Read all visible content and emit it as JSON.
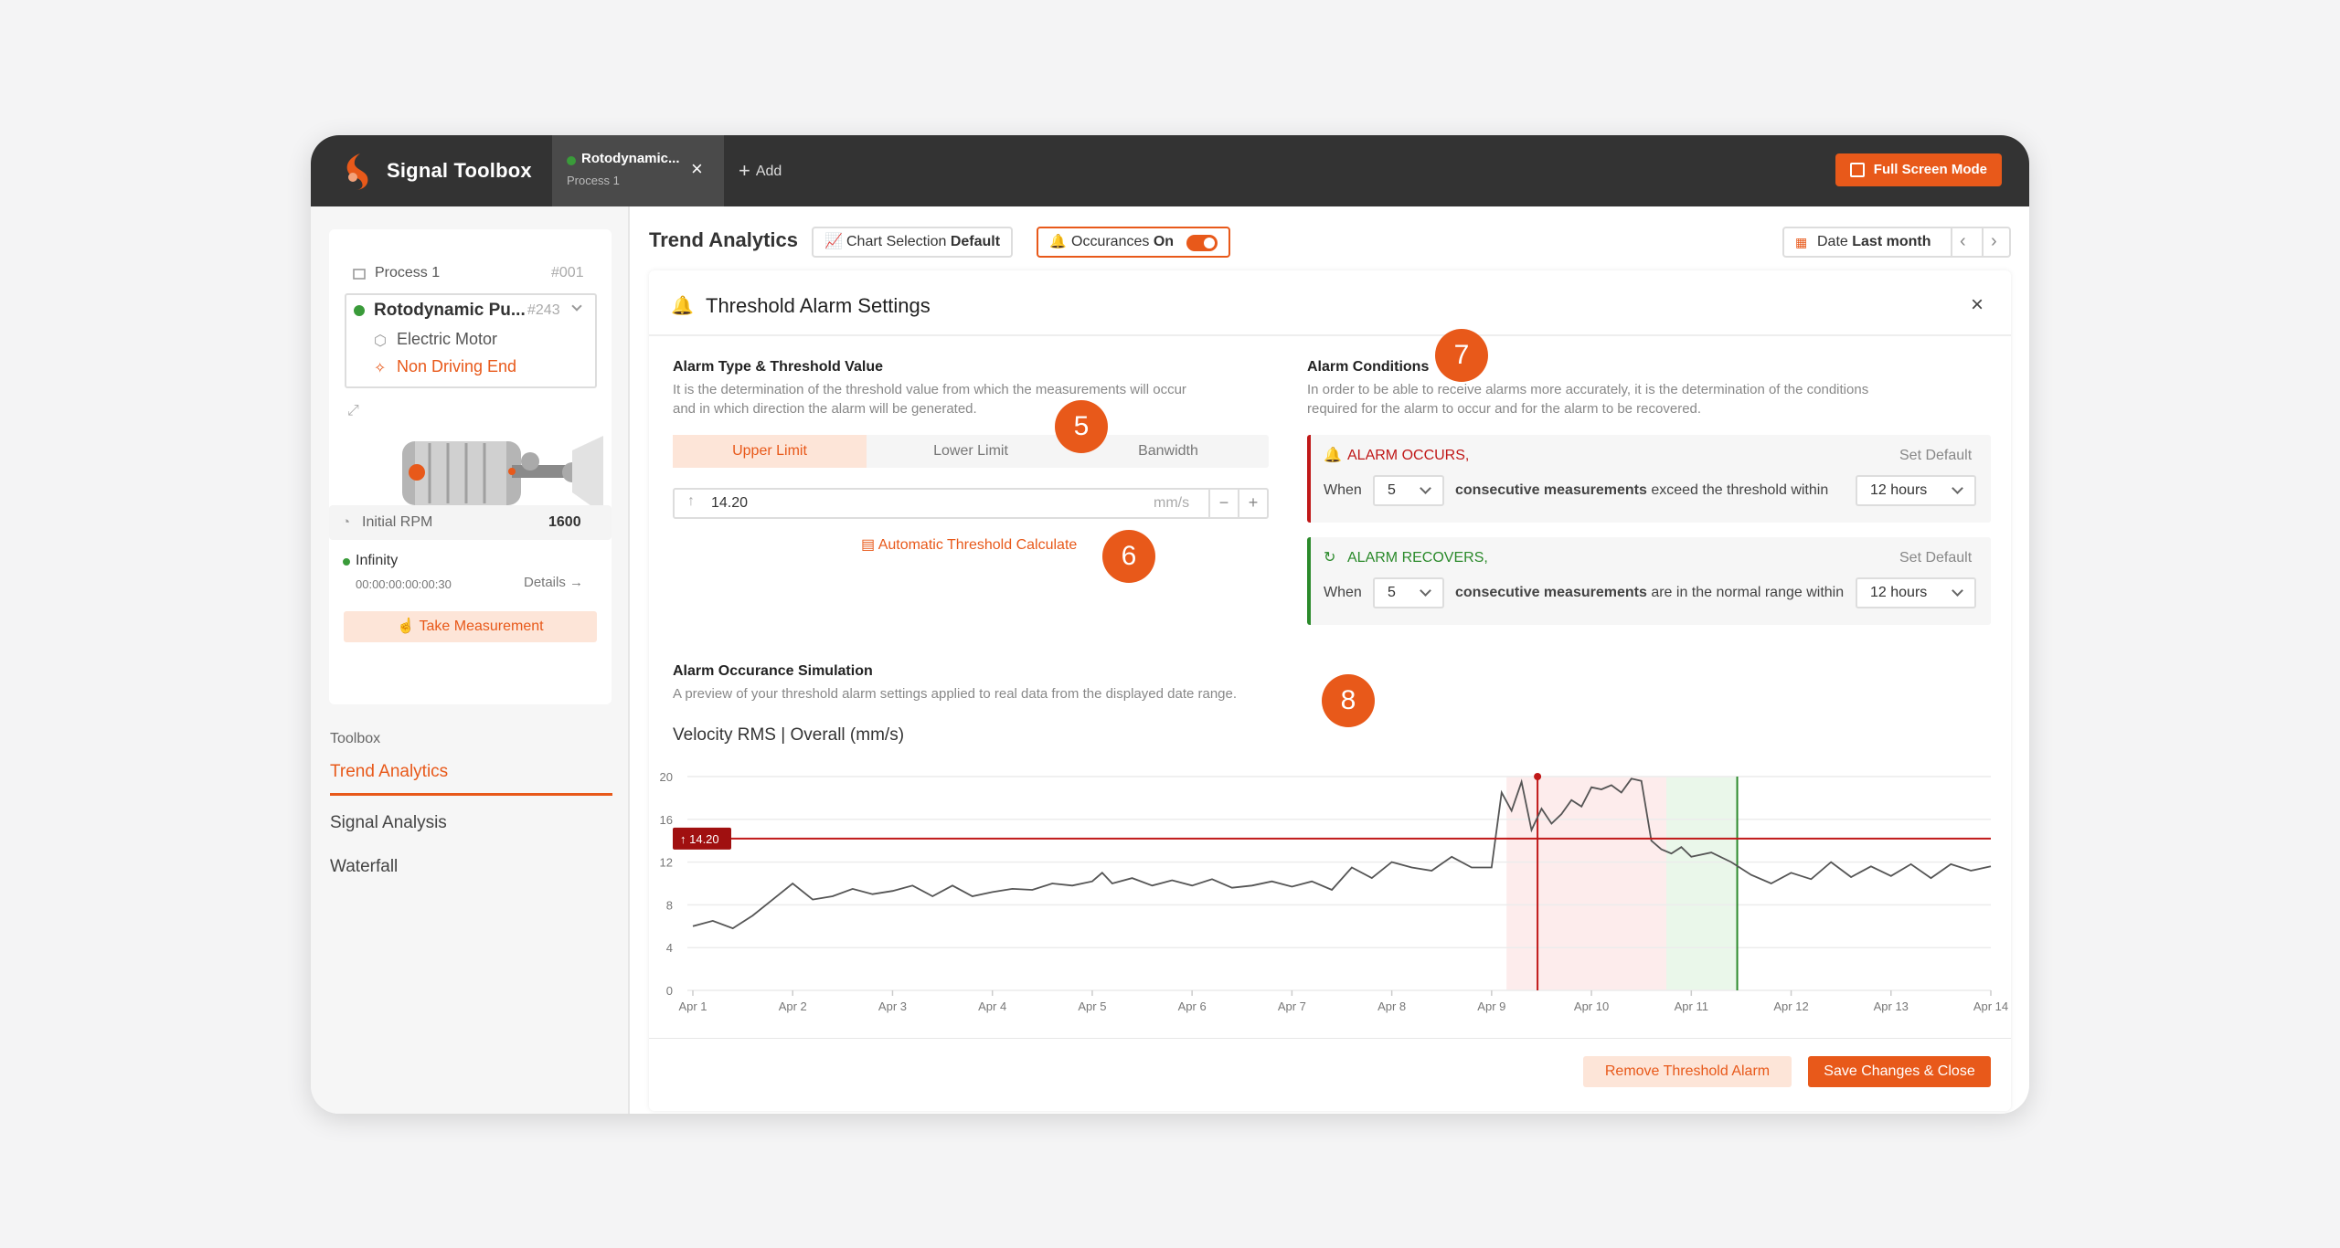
{
  "app": {
    "brand": "Signal Toolbox",
    "full_screen_label": "Full Screen Mode"
  },
  "tabs": [
    {
      "title": "Rotodynamic...",
      "subtitle": "Process 1",
      "status_color": "#3a9b3a"
    }
  ],
  "add_tab_label": "Add",
  "sidebar": {
    "process_label": "Process 1",
    "process_id": "#001",
    "asset": {
      "name": "Rotodynamic Pu...",
      "id": "#243",
      "child1": "Electric Motor",
      "child2": "Non Driving End"
    },
    "initial_rpm_label": "Initial RPM",
    "initial_rpm_value": "1600",
    "status_label": "Infinity",
    "timer": "00:00:00:00:00:30",
    "details_label": "Details",
    "take_measurement_label": "Take Measurement",
    "toolbox_label": "Toolbox",
    "nav": [
      "Trend Analytics",
      "Signal Analysis",
      "Waterfall"
    ]
  },
  "header": {
    "title": "Trend Analytics",
    "chart_selection_label": "Chart Selection",
    "chart_selection_value": "Default",
    "occurances_label": "Occurances",
    "occurances_value": "On",
    "date_label": "Date",
    "date_value": "Last month"
  },
  "dialog": {
    "title": "Threshold Alarm Settings",
    "type_section_title": "Alarm Type & Threshold Value",
    "type_section_desc1": "It is the determination of the threshold value from which the measurements will occur",
    "type_section_desc2": "and in which direction the alarm will be generated.",
    "types": [
      "Upper Limit",
      "Lower Limit",
      "Banwidth"
    ],
    "active_type": "Upper Limit",
    "threshold_value": "14.20",
    "threshold_unit": "mm/s",
    "auto_calc_label": "Automatic Threshold Calculate",
    "conditions_title": "Alarm Conditions",
    "conditions_desc1": "In order to be able to receive alarms more accurately, it is the determination of the conditions",
    "conditions_desc2": "required for the alarm to occur and for the alarm to be recovered.",
    "occurs": {
      "title": "ALARM OCCURS,",
      "set_default": "Set Default",
      "when": "When",
      "count": "5",
      "text_bold": "consecutive measurements",
      "text": "exceed the threshold within",
      "window": "12 hours"
    },
    "recovers": {
      "title": "ALARM RECOVERS,",
      "set_default": "Set Default",
      "when": "When",
      "count": "5",
      "text_bold": "consecutive measurements",
      "text": "are in the normal range within",
      "window": "12 hours"
    },
    "sim_title": "Alarm Occurance Simulation",
    "sim_desc": "A preview of your threshold alarm settings applied to real data from the displayed date range.",
    "remove_label": "Remove Threshold Alarm",
    "save_label": "Save Changes & Close"
  },
  "badges": [
    "5",
    "6",
    "7",
    "8"
  ],
  "colors": {
    "accent": "#e8591a",
    "alarm": "#c01818",
    "recover": "#2b8a2b"
  },
  "chart_data": {
    "type": "line",
    "title": "Velocity RMS | Overall (mm/s)",
    "x_labels": [
      "Apr 1",
      "Apr 2",
      "Apr 3",
      "Apr 4",
      "Apr 5",
      "Apr 6",
      "Apr 7",
      "Apr 8",
      "Apr 9",
      "Apr 10",
      "Apr 11",
      "Apr 12",
      "Apr 13",
      "Apr 14"
    ],
    "ylim": [
      0,
      20
    ],
    "yticks": [
      "0",
      "4",
      "8",
      "12",
      "16",
      "20"
    ],
    "threshold": 14.2,
    "threshold_label": "14.20",
    "alarm_region": [
      9.15,
      10.75
    ],
    "recover_region": [
      10.75,
      11.45
    ],
    "alarm_marker_x": 9.46,
    "recover_marker_x": 11.46,
    "series": [
      {
        "x": [
          1.0,
          1.2,
          1.4,
          1.6,
          1.8,
          2.0,
          2.2,
          2.4,
          2.6,
          2.8,
          3.0,
          3.2,
          3.4,
          3.6,
          3.8,
          4.0,
          4.2,
          4.4,
          4.6,
          4.8,
          5.0,
          5.1,
          5.2,
          5.4,
          5.6,
          5.8,
          6.0,
          6.2,
          6.4,
          6.6,
          6.8,
          7.0,
          7.2,
          7.4,
          7.6,
          7.8,
          8.0,
          8.2,
          8.4,
          8.6,
          8.8,
          9.0,
          9.1,
          9.2,
          9.3,
          9.4,
          9.5,
          9.6,
          9.7,
          9.8,
          9.9,
          10.0,
          10.1,
          10.2,
          10.3,
          10.4,
          10.5,
          10.6,
          10.7,
          10.8,
          10.9,
          11.0,
          11.2,
          11.4,
          11.6,
          11.8,
          12.0,
          12.2,
          12.4,
          12.6,
          12.8,
          13.0,
          13.2,
          13.4,
          13.6,
          13.8,
          14.0
        ],
        "values": [
          6.0,
          6.5,
          5.8,
          7.0,
          8.5,
          10.0,
          8.5,
          8.8,
          9.5,
          9.0,
          9.3,
          9.8,
          8.8,
          9.8,
          8.8,
          9.2,
          9.5,
          9.4,
          10.0,
          9.8,
          10.2,
          11.0,
          10.0,
          10.5,
          9.8,
          10.3,
          9.8,
          10.4,
          9.6,
          9.8,
          10.2,
          9.7,
          10.2,
          9.4,
          11.5,
          10.5,
          12.0,
          11.5,
          11.2,
          12.5,
          11.5,
          11.5,
          18.5,
          16.8,
          19.5,
          15.0,
          17.0,
          15.6,
          16.5,
          17.8,
          17.2,
          19.0,
          18.8,
          19.2,
          18.5,
          19.8,
          19.6,
          14.0,
          13.2,
          12.8,
          13.4,
          12.5,
          12.9,
          12.0,
          10.8,
          10.0,
          11.0,
          10.4,
          12.0,
          10.6,
          11.6,
          10.7,
          11.8,
          10.5,
          11.8,
          11.2,
          11.6
        ]
      }
    ]
  }
}
